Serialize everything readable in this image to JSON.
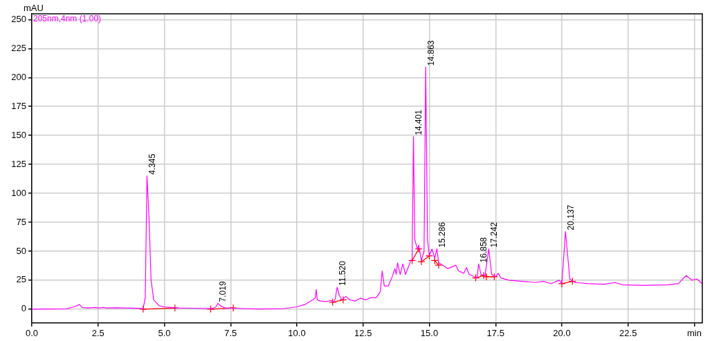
{
  "chart_data": {
    "type": "line",
    "ylabel": "mAU",
    "xlim": [
      0,
      25.3
    ],
    "ylim": [
      -12,
      255
    ],
    "xticks": [
      {
        "value": 0,
        "label": "0.0"
      },
      2.5,
      {
        "value": 5,
        "label": "5.0"
      },
      7.5,
      {
        "value": 10,
        "label": "10.0"
      },
      12.5,
      {
        "value": 15,
        "label": "15.0"
      },
      17.5,
      {
        "value": 20,
        "label": "20.0"
      },
      22.5,
      {
        "value": 25,
        "label": "min"
      }
    ],
    "yticks": [
      0,
      25,
      50,
      75,
      100,
      125,
      150,
      175,
      200,
      225,
      250
    ],
    "grid": true,
    "legend": "top left",
    "line_style": "solid",
    "series": [
      {
        "name": "205nm,4nm (1.00)",
        "color": "#ff00ff",
        "marker": "none",
        "x": [
          0,
          1.3,
          1.6,
          1.8,
          1.9,
          2.1,
          2.4,
          2.5,
          2.7,
          2.8,
          3.2,
          3.5,
          4.0,
          4.2,
          4.28,
          4.345,
          4.42,
          4.5,
          4.6,
          4.8,
          5.0,
          5.5,
          6.0,
          6.8,
          6.95,
          7.02,
          7.15,
          7.3,
          7.6,
          8.5,
          9.5,
          10.0,
          10.3,
          10.6,
          10.7,
          10.73,
          10.77,
          10.9,
          11.1,
          11.3,
          11.38,
          11.45,
          11.52,
          11.6,
          11.7,
          11.85,
          12.0,
          12.2,
          12.4,
          12.6,
          12.8,
          13.0,
          13.15,
          13.22,
          13.3,
          13.45,
          13.6,
          13.7,
          13.75,
          13.8,
          13.9,
          14.0,
          14.1,
          14.2,
          14.3,
          14.35,
          14.401,
          14.45,
          14.55,
          14.6,
          14.7,
          14.8,
          14.863,
          14.93,
          15.0,
          15.05,
          15.1,
          15.2,
          15.286,
          15.35,
          15.5,
          15.7,
          16.0,
          16.1,
          16.3,
          16.4,
          16.5,
          16.8,
          16.858,
          16.95,
          17.1,
          17.242,
          17.35,
          17.5,
          17.6,
          17.7,
          18.0,
          18.5,
          19.0,
          19.3,
          19.6,
          19.9,
          20.0,
          20.137,
          20.3,
          20.5,
          21.0,
          21.6,
          22.0,
          22.3,
          23.0,
          24.0,
          24.4,
          24.6,
          24.7,
          24.9,
          25.1,
          25.3
        ],
        "values": [
          0,
          0.3,
          2,
          4,
          1.5,
          1,
          1.5,
          1,
          1.5,
          1,
          1.2,
          1,
          0.7,
          0.5,
          10,
          115,
          80,
          25,
          8,
          3,
          2,
          1,
          0.8,
          0.5,
          2,
          5,
          2.5,
          1,
          0.8,
          0.2,
          0.5,
          2,
          4,
          8,
          10,
          17,
          8,
          7,
          6.5,
          7.5,
          6,
          9,
          19,
          12,
          8,
          11,
          8,
          7,
          9.5,
          8,
          10,
          10,
          15,
          33,
          20,
          20,
          28,
          35,
          30,
          40,
          30,
          39,
          30,
          36,
          42,
          43,
          149,
          60,
          52,
          55,
          42,
          50,
          209,
          60,
          46,
          49,
          52,
          44,
          52,
          40,
          38,
          35,
          38,
          33,
          31,
          36,
          30,
          27,
          39,
          30,
          29,
          52,
          30,
          28,
          31,
          27,
          25,
          24,
          23,
          24,
          22,
          25,
          22,
          67,
          26,
          23,
          22,
          21.5,
          23,
          21,
          20.5,
          21,
          22,
          27,
          29,
          25,
          26,
          22
        ]
      },
      {
        "color": "#ff0000",
        "marker": "cross",
        "x": [
          4.2,
          5.4
        ],
        "values": [
          0,
          1
        ]
      },
      {
        "color": "#ff0000",
        "marker": "cross",
        "x": [
          6.75,
          7.6
        ],
        "values": [
          0,
          1
        ]
      },
      {
        "color": "#ff0000",
        "marker": "cross",
        "x": [
          11.35,
          11.75
        ],
        "values": [
          6,
          8
        ]
      },
      {
        "color": "#ff0000",
        "marker": "cross",
        "x": [
          14.35,
          14.6
        ],
        "values": [
          42,
          52
        ]
      },
      {
        "color": "#ff0000",
        "marker": "cross",
        "x": [
          14.7,
          15.0
        ],
        "values": [
          41,
          46
        ]
      },
      {
        "color": "#ff0000",
        "marker": "cross",
        "x": [
          15.2,
          15.35
        ],
        "values": [
          42,
          38
        ]
      },
      {
        "color": "#ff0000",
        "marker": "cross",
        "x": [
          16.75,
          17.05
        ],
        "values": [
          27,
          29
        ]
      },
      {
        "color": "#ff0000",
        "marker": "cross",
        "x": [
          17.15,
          17.45
        ],
        "values": [
          28,
          28
        ]
      },
      {
        "color": "#ff0000",
        "marker": "cross",
        "x": [
          20.0,
          20.4
        ],
        "values": [
          22,
          24
        ]
      }
    ],
    "annotations": [
      {
        "text": "4.345",
        "x": 4.345,
        "y": 115
      },
      {
        "text": "7.019",
        "x": 7.019,
        "y": 5
      },
      {
        "text": "11.520",
        "x": 11.52,
        "y": 19
      },
      {
        "text": "14.401",
        "x": 14.401,
        "y": 149
      },
      {
        "text": "14.863",
        "x": 14.863,
        "y": 209
      },
      {
        "text": "15.286",
        "x": 15.286,
        "y": 52
      },
      {
        "text": "16.858",
        "x": 16.858,
        "y": 39
      },
      {
        "text": "17.242",
        "x": 17.242,
        "y": 52
      },
      {
        "text": "20.137",
        "x": 20.137,
        "y": 67
      }
    ]
  }
}
